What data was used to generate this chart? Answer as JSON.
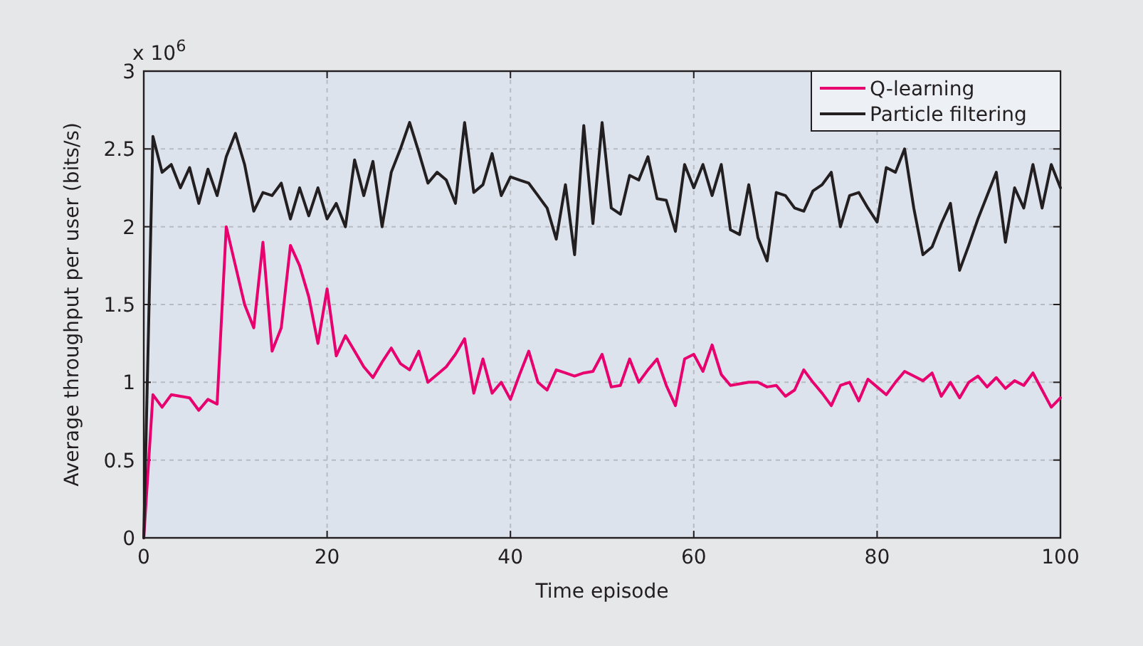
{
  "chart_data": {
    "type": "line",
    "xlabel": "Time episode",
    "ylabel": "Average throughput per user (bits/s)",
    "annotations": [
      "x 10$^{6}$"
    ],
    "x": [
      0,
      1,
      2,
      3,
      4,
      5,
      6,
      7,
      8,
      9,
      10,
      11,
      12,
      13,
      14,
      15,
      16,
      17,
      18,
      19,
      20,
      21,
      22,
      23,
      24,
      25,
      26,
      27,
      28,
      29,
      30,
      31,
      32,
      33,
      34,
      35,
      36,
      37,
      38,
      39,
      40,
      41,
      42,
      43,
      44,
      45,
      46,
      47,
      48,
      49,
      50,
      51,
      52,
      53,
      54,
      55,
      56,
      57,
      58,
      59,
      60,
      61,
      62,
      63,
      64,
      65,
      66,
      67,
      68,
      69,
      70,
      71,
      72,
      73,
      74,
      75,
      76,
      77,
      78,
      79,
      80,
      81,
      82,
      83,
      84,
      85,
      86,
      87,
      88,
      89,
      90,
      91,
      92,
      93,
      94,
      95,
      96,
      97,
      98,
      99,
      100
    ],
    "series": [
      {
        "name": "Q-learning",
        "color": "#e8006e",
        "values": [
          0,
          0.92,
          0.84,
          0.92,
          0.91,
          0.9,
          0.82,
          0.89,
          0.86,
          2.0,
          1.75,
          1.5,
          1.35,
          1.9,
          1.2,
          1.35,
          1.88,
          1.75,
          1.55,
          1.25,
          1.6,
          1.17,
          1.3,
          1.2,
          1.1,
          1.03,
          1.13,
          1.22,
          1.12,
          1.08,
          1.2,
          1.0,
          1.05,
          1.1,
          1.18,
          1.28,
          0.93,
          1.15,
          0.93,
          1.0,
          0.89,
          1.05,
          1.2,
          1.0,
          0.95,
          1.08,
          1.06,
          1.04,
          1.06,
          1.07,
          1.18,
          0.97,
          0.98,
          1.15,
          1.0,
          1.08,
          1.15,
          0.98,
          0.85,
          1.15,
          1.18,
          1.07,
          1.24,
          1.05,
          0.98,
          0.99,
          1.0,
          1.0,
          0.97,
          0.98,
          0.91,
          0.95,
          1.08,
          1.0,
          0.93,
          0.85,
          0.98,
          1.0,
          0.88,
          1.02,
          0.97,
          0.92,
          1.0,
          1.07,
          1.04,
          1.01,
          1.06,
          0.91,
          1.0,
          0.9,
          1.0,
          1.04,
          0.97,
          1.03,
          0.96,
          1.01,
          0.98,
          1.06,
          0.95,
          0.84,
          0.9
        ]
      },
      {
        "name": "Particle filtering",
        "color": "#231f20",
        "values": [
          0,
          2.58,
          2.35,
          2.4,
          2.25,
          2.38,
          2.15,
          2.37,
          2.2,
          2.45,
          2.6,
          2.4,
          2.1,
          2.22,
          2.2,
          2.28,
          2.05,
          2.25,
          2.07,
          2.25,
          2.05,
          2.15,
          2.0,
          2.43,
          2.2,
          2.42,
          2.0,
          2.35,
          2.5,
          2.67,
          2.48,
          2.28,
          2.35,
          2.3,
          2.15,
          2.67,
          2.22,
          2.27,
          2.47,
          2.2,
          2.32,
          2.3,
          2.28,
          2.2,
          2.12,
          1.92,
          2.27,
          1.82,
          2.65,
          2.02,
          2.67,
          2.12,
          2.08,
          2.33,
          2.3,
          2.45,
          2.18,
          2.17,
          1.97,
          2.4,
          2.25,
          2.4,
          2.2,
          2.4,
          1.98,
          1.95,
          2.27,
          1.93,
          1.78,
          2.22,
          2.2,
          2.12,
          2.1,
          2.23,
          2.27,
          2.35,
          2.0,
          2.2,
          2.22,
          2.12,
          2.03,
          2.38,
          2.35,
          2.5,
          2.12,
          1.82,
          1.87,
          2.02,
          2.15,
          1.72,
          1.88,
          2.05,
          2.2,
          2.35,
          1.9,
          2.25,
          2.12,
          2.4,
          2.12,
          2.4,
          2.25
        ]
      }
    ],
    "xlim": [
      0,
      100
    ],
    "xticks": [
      0,
      20,
      40,
      60,
      80,
      100
    ],
    "ylim": [
      0,
      3
    ],
    "yticks": [
      0,
      0.5,
      1,
      1.5,
      2,
      2.5,
      3
    ],
    "grid": true,
    "legend": "top right",
    "line_style": "solid",
    "marker": "none"
  }
}
